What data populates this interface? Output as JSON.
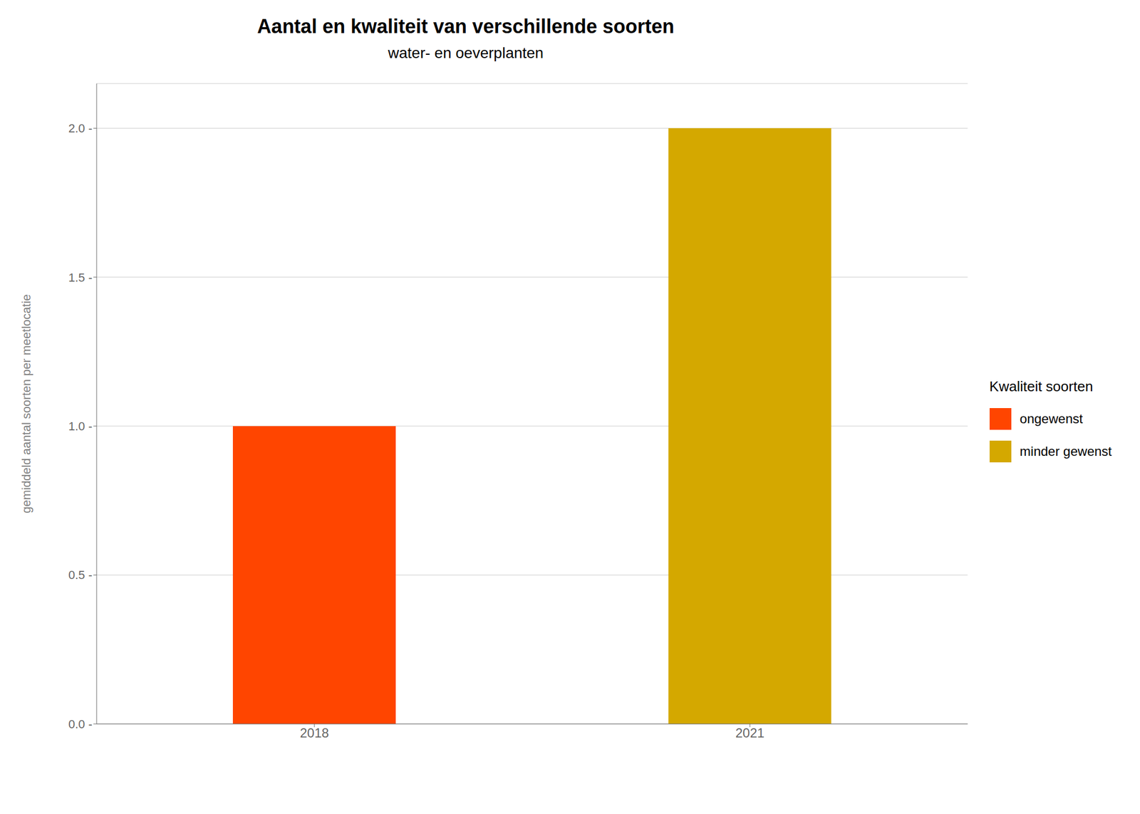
{
  "chart_data": {
    "type": "bar",
    "title": "Aantal en kwaliteit van verschillende soorten",
    "subtitle": "water- en oeverplanten",
    "ylabel": "gemiddeld aantal soorten per meetlocatie",
    "categories": [
      "2018",
      "2021"
    ],
    "series": [
      {
        "name": "ongewenst",
        "color": "#FF4500",
        "values": [
          1.0,
          null
        ]
      },
      {
        "name": "minder gewenst",
        "color": "#D4A800",
        "values": [
          null,
          2.0
        ]
      }
    ],
    "ylim": [
      0,
      2.15
    ],
    "yticks": [
      {
        "value": 0.0,
        "label": "0.0 -"
      },
      {
        "value": 0.5,
        "label": "0.5 -"
      },
      {
        "value": 1.0,
        "label": "1.0 -"
      },
      {
        "value": 1.5,
        "label": "1.5 -"
      },
      {
        "value": 2.0,
        "label": "2.0 -"
      }
    ],
    "grid": true,
    "legend": "right",
    "legend_title": "Kwaliteit soorten"
  }
}
